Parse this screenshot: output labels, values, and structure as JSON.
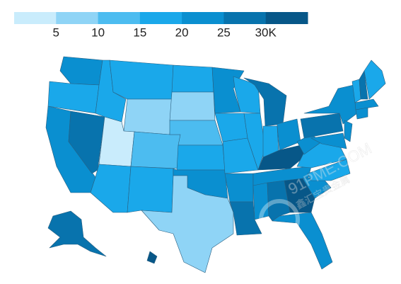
{
  "map": {
    "legend": {
      "colors": [
        "#c9ecfc",
        "#8fd4f6",
        "#4cbcf0",
        "#1aa8ea",
        "#0a8fd0",
        "#0873ad",
        "#075788"
      ],
      "xlim": [
        0,
        35
      ],
      "ticks": [
        5,
        10,
        15,
        20,
        25,
        {
          "value": 30,
          "label": "30K"
        }
      ]
    },
    "values": [
      22,
      18,
      20,
      27,
      17,
      17,
      8,
      3,
      17,
      12,
      17,
      17,
      8,
      12,
      17,
      22,
      8,
      20,
      17,
      17,
      20,
      25,
      17,
      17,
      25,
      17,
      20,
      33,
      20,
      22,
      25,
      32,
      22,
      20,
      17,
      17,
      20,
      27,
      22,
      22,
      20,
      17,
      25,
      15,
      22,
      20,
      25,
      30
    ],
    "watermark": [
      "91PME.COM",
      "鑫汇宝贵金属"
    ]
  }
}
